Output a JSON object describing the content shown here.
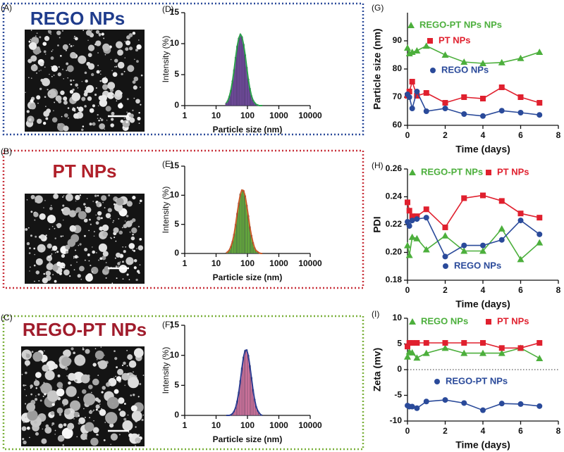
{
  "images": [
    {
      "label": "(A)",
      "title": "REGO NPs",
      "color": "#1f3c8c",
      "border_color": "#2b4a9a"
    },
    {
      "label": "(B)",
      "title": "PT NPs",
      "color": "#b0202a",
      "border_color": "#c8303a"
    },
    {
      "label": "(C)",
      "title": "REGO-PT NPs",
      "color": "#a01c2c",
      "border_color": "#7ab03a"
    }
  ],
  "chart_data": [
    {
      "type": "histogram",
      "label": "(D)",
      "x_label": "Particle size (nm)",
      "y_label": "Intensity (%)",
      "log_x": true,
      "bins": [
        19.95,
        22.39,
        25.12,
        28.18,
        31.62,
        35.48,
        39.81,
        44.67,
        50.12,
        56.23,
        63.1,
        70.79,
        79.43,
        89.13,
        100,
        112.2,
        125.9,
        141.3,
        158.5,
        177.8,
        199.5,
        223.9,
        251.2,
        281.8,
        316.2
      ],
      "values": [
        0.4,
        0.8,
        1.5,
        2.5,
        4.0,
        5.8,
        7.8,
        9.6,
        10.9,
        11.5,
        11.1,
        9.9,
        8.2,
        6.2,
        4.3,
        2.8,
        1.6,
        0.9,
        0.5,
        0.2,
        0.1,
        0,
        0,
        0
      ],
      "color": "#7a4fa6",
      "line_color": "#2aa04a",
      "xlim": [
        1,
        10000
      ],
      "xticks": [
        1,
        10,
        100,
        1000,
        10000
      ],
      "ylim": [
        0,
        15
      ],
      "yticks": [
        0,
        5,
        10,
        15
      ]
    },
    {
      "type": "histogram",
      "label": "(E)",
      "x_label": "Particle size (nm)",
      "y_label": "Intensity (%)",
      "log_x": true,
      "bins": [
        19.95,
        22.39,
        25.12,
        28.18,
        31.62,
        35.48,
        39.81,
        44.67,
        50.12,
        56.23,
        63.1,
        70.79,
        79.43,
        89.13,
        100,
        112.2,
        125.9,
        141.3,
        158.5,
        177.8,
        199.5,
        223.9,
        251.2,
        281.8,
        316.2
      ],
      "values": [
        0.1,
        0.3,
        0.6,
        1.2,
        2.1,
        3.3,
        5.0,
        6.9,
        8.7,
        10.2,
        10.9,
        10.8,
        9.9,
        8.3,
        6.5,
        4.6,
        3.1,
        1.9,
        1.0,
        0.5,
        0.3,
        0.1,
        0,
        0
      ],
      "color": "#6fbe3a",
      "line_color": "#c8582a",
      "xlim": [
        1,
        10000
      ],
      "xticks": [
        1,
        10,
        100,
        1000,
        10000
      ],
      "ylim": [
        0,
        15
      ],
      "yticks": [
        0,
        5,
        10,
        15
      ]
    },
    {
      "type": "histogram",
      "label": "(F)",
      "x_label": "Particle size (nm)",
      "y_label": "Intensity (%)",
      "log_x": true,
      "bins": [
        19.95,
        22.39,
        25.12,
        28.18,
        31.62,
        35.48,
        39.81,
        44.67,
        50.12,
        56.23,
        63.1,
        70.79,
        79.43,
        89.13,
        100,
        112.2,
        125.9,
        141.3,
        158.5,
        177.8,
        199.5,
        223.9,
        251.2,
        281.8,
        316.2
      ],
      "values": [
        0,
        0,
        0,
        0.1,
        0.3,
        0.7,
        1.3,
        2.4,
        3.9,
        5.8,
        7.9,
        9.7,
        10.8,
        10.9,
        10.0,
        8.3,
        6.3,
        4.3,
        2.7,
        1.5,
        0.8,
        0.4,
        0.1,
        0
      ],
      "color": "#e87fa8",
      "line_color": "#2c3e91",
      "xlim": [
        1,
        10000
      ],
      "xticks": [
        1,
        10,
        100,
        1000,
        10000
      ],
      "ylim": [
        0,
        15
      ],
      "yticks": [
        0,
        5,
        10,
        15
      ]
    },
    {
      "type": "line",
      "label": "(G)",
      "x_label": "Time (days)",
      "y_label": "Particle size (nm)",
      "x": [
        0,
        0.1,
        0.25,
        0.5,
        1,
        2,
        3,
        4,
        5,
        6,
        7
      ],
      "series": [
        {
          "name": "REGO-PT NPs NPs",
          "color": "#4caf3c",
          "marker": "triangle",
          "values": [
            87.5,
            85.5,
            86,
            86.5,
            88.2,
            85,
            82.5,
            82,
            82.3,
            83.8,
            86
          ]
        },
        {
          "name": "PT NPs",
          "color": "#e0202e",
          "marker": "square",
          "values": [
            70.5,
            72,
            75.5,
            70.5,
            71.5,
            68,
            70,
            69.5,
            73.5,
            70,
            68
          ]
        },
        {
          "name": "REGO NPs",
          "color": "#2a4a9a",
          "marker": "circle",
          "values": [
            71,
            70,
            66,
            72,
            65,
            66,
            64,
            63.3,
            65.2,
            64.5,
            63.7
          ]
        }
      ],
      "xlim": [
        0,
        8
      ],
      "xticks": [
        0,
        2,
        4,
        6,
        8
      ],
      "ylim": [
        60,
        100
      ],
      "yticks": [
        60,
        70,
        80,
        90
      ]
    },
    {
      "type": "line",
      "label": "(H)",
      "x_label": "Time (days)",
      "y_label": "PDI",
      "x": [
        0,
        0.1,
        0.25,
        0.5,
        1,
        2,
        3,
        4,
        5,
        6,
        7
      ],
      "series": [
        {
          "name": "REGO-PT NPs",
          "color": "#4caf3c",
          "marker": "triangle",
          "values": [
            0.205,
            0.198,
            0.211,
            0.21,
            0.202,
            0.212,
            0.201,
            0.201,
            0.217,
            0.195,
            0.207
          ]
        },
        {
          "name": "PT NPs",
          "color": "#e0202e",
          "marker": "square",
          "values": [
            0.236,
            0.23,
            0.226,
            0.226,
            0.231,
            0.218,
            0.239,
            0.241,
            0.237,
            0.228,
            0.225
          ]
        },
        {
          "name": "REGO NPs",
          "color": "#2a4a9a",
          "marker": "circle",
          "values": [
            0.222,
            0.219,
            0.223,
            0.224,
            0.225,
            0.197,
            0.205,
            0.205,
            0.209,
            0.223,
            0.213
          ]
        }
      ],
      "xlim": [
        0,
        8
      ],
      "xticks": [
        0,
        2,
        4,
        6,
        8
      ],
      "ylim": [
        0.18,
        0.26
      ],
      "yticks": [
        {
          "value": 0.18,
          "label": "0.18"
        },
        {
          "value": 0.2,
          "label": "0.20"
        },
        {
          "value": 0.22,
          "label": "0.22"
        },
        {
          "value": 0.24,
          "label": "0.24"
        },
        {
          "value": 0.26,
          "label": "0.26"
        }
      ]
    },
    {
      "type": "line",
      "label": "(I)",
      "x_label": "Time (days)",
      "y_label": "Zeta (mv)",
      "zero_line": true,
      "x": [
        0,
        0.1,
        0.25,
        0.5,
        1,
        2,
        3,
        4,
        5,
        6,
        7
      ],
      "series": [
        {
          "name": "REGO NPs",
          "color": "#4caf3c",
          "marker": "triangle",
          "values": [
            2.5,
            3.5,
            3.3,
            2.3,
            3.2,
            4.2,
            3.2,
            3.2,
            3.2,
            4.2,
            2.2
          ]
        },
        {
          "name": "PT NPs",
          "color": "#e0202e",
          "marker": "square",
          "values": [
            4.5,
            5.2,
            5.2,
            5.2,
            5.2,
            5.2,
            5.2,
            5.2,
            4.2,
            4.2,
            5.2
          ]
        },
        {
          "name": "REGO-PT NPs",
          "color": "#2a4a9a",
          "marker": "circle",
          "values": [
            -7,
            -7.2,
            -7.2,
            -7.5,
            -6.2,
            -5.9,
            -6.5,
            -7.9,
            -6.6,
            -6.7,
            -7.1
          ]
        }
      ],
      "xlim": [
        0,
        8
      ],
      "xticks": [
        0,
        2,
        4,
        6,
        8
      ],
      "ylim": [
        -10,
        10
      ],
      "yticks": [
        -10,
        -5,
        0,
        5,
        10
      ]
    }
  ]
}
